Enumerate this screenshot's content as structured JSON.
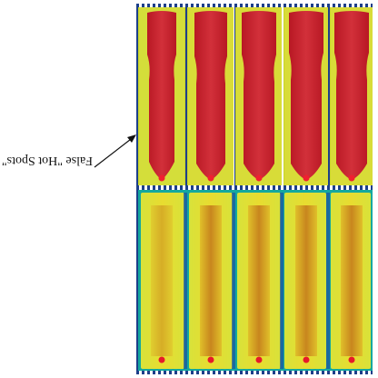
{
  "figure": {
    "annotation": {
      "text": "False \"Hot Spots\""
    },
    "panel_backgrounds": {
      "top_outer": "#c8d42c",
      "bottom_outer": "#15a8a0"
    },
    "colors": {
      "hot_red": "#c71f2b",
      "hot_red_light": "#d8463c",
      "warm_yellow": "#e4dc2e",
      "warm_orange": "#d49a22",
      "cool_green": "#bfd43a",
      "hot_spot": "#e6192a",
      "edge_blue": "#1b4fa0"
    },
    "cells_top_count": 5,
    "cells_bottom_count": 5
  }
}
